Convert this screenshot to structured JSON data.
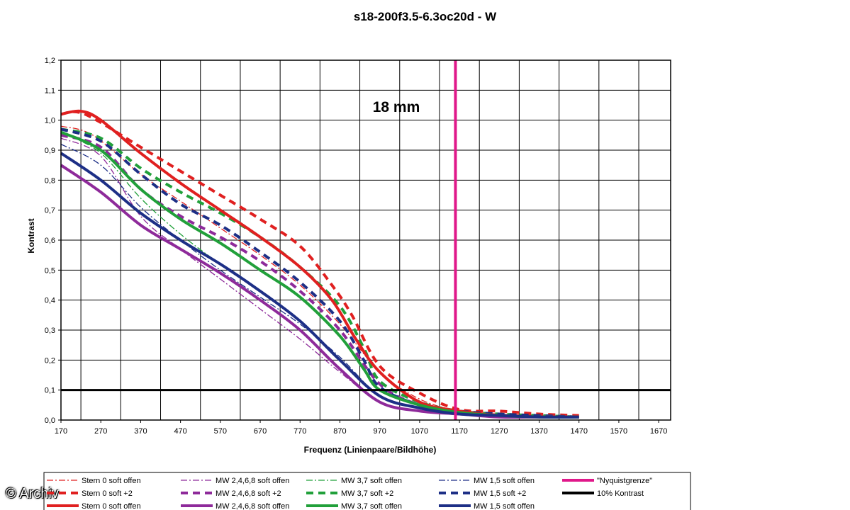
{
  "watermark": "© Archiv",
  "chart_data": {
    "type": "line",
    "title": "s18-200f3.5-6.3oc20d - W",
    "annotation": "18 mm",
    "xlabel": "Frequenz (Linienpaare/Bildhöhe)",
    "ylabel": "Kontrast",
    "xlim": [
      170,
      1700
    ],
    "ylim": [
      0,
      1.2
    ],
    "x_ticks": [
      170,
      270,
      370,
      470,
      570,
      670,
      770,
      870,
      970,
      1070,
      1170,
      1270,
      1370,
      1470,
      1570,
      1670
    ],
    "y_ticks": [
      "0,0",
      "0,1",
      "0,2",
      "0,3",
      "0,4",
      "0,5",
      "0,6",
      "0,7",
      "0,8",
      "0,9",
      "1,0",
      "1,1",
      "1,2"
    ],
    "grid": true,
    "legend_position": "bottom",
    "colors": {
      "red": "#e02020",
      "purple": "#8e2a9a",
      "green": "#21a03a",
      "navy": "#1d2f86",
      "magenta": "#e0188a",
      "black": "#000000"
    },
    "series": [
      {
        "name": "Stern 0 soft offen",
        "style": "dashdot",
        "color": "#e02020",
        "x": [
          170,
          250,
          370,
          470,
          570,
          670,
          770,
          870,
          970,
          1070,
          1170,
          1270,
          1370,
          1470
        ],
        "y": [
          0.98,
          0.95,
          0.82,
          0.73,
          0.64,
          0.55,
          0.45,
          0.32,
          0.16,
          0.07,
          0.03,
          0.02,
          0.015,
          0.01
        ]
      },
      {
        "name": "Stern 0 soft +2",
        "style": "dashed",
        "color": "#e02020",
        "x": [
          170,
          230,
          370,
          470,
          570,
          670,
          770,
          850,
          900,
          970,
          1070,
          1170,
          1270,
          1370,
          1470
        ],
        "y": [
          1.02,
          1.02,
          0.91,
          0.83,
          0.75,
          0.67,
          0.58,
          0.45,
          0.35,
          0.18,
          0.09,
          0.035,
          0.03,
          0.02,
          0.015
        ]
      },
      {
        "name": "Stern 0 soft offen",
        "style": "solid",
        "color": "#e02020",
        "x": [
          170,
          220,
          270,
          370,
          470,
          570,
          670,
          770,
          850,
          910,
          970,
          1070,
          1170,
          1270,
          1370,
          1470
        ],
        "y": [
          1.02,
          1.03,
          1.0,
          0.89,
          0.79,
          0.7,
          0.61,
          0.51,
          0.4,
          0.27,
          0.16,
          0.06,
          0.03,
          0.015,
          0.01,
          0.01
        ]
      },
      {
        "name": "MW 2,4,6,8 soft offen",
        "style": "dashdot",
        "color": "#8e2a9a",
        "x": [
          170,
          270,
          370,
          470,
          570,
          670,
          770,
          870,
          970,
          1070,
          1170,
          1270,
          1370,
          1470
        ],
        "y": [
          0.94,
          0.88,
          0.68,
          0.57,
          0.47,
          0.37,
          0.27,
          0.16,
          0.06,
          0.03,
          0.02,
          0.01,
          0.01,
          0.01
        ]
      },
      {
        "name": "MW 2,4,6,8 soft +2",
        "style": "dashed",
        "color": "#8e2a9a",
        "x": [
          170,
          270,
          370,
          470,
          570,
          670,
          770,
          870,
          970,
          1070,
          1170,
          1270,
          1370,
          1470
        ],
        "y": [
          0.95,
          0.91,
          0.77,
          0.68,
          0.61,
          0.53,
          0.43,
          0.3,
          0.12,
          0.05,
          0.025,
          0.015,
          0.01,
          0.01
        ]
      },
      {
        "name": "MW 2,4,6,8 soft offen",
        "style": "solid",
        "color": "#8e2a9a",
        "x": [
          170,
          270,
          370,
          470,
          570,
          670,
          770,
          870,
          970,
          1070,
          1170,
          1270,
          1370,
          1470
        ],
        "y": [
          0.85,
          0.76,
          0.65,
          0.57,
          0.49,
          0.4,
          0.3,
          0.17,
          0.06,
          0.03,
          0.02,
          0.01,
          0.01,
          0.01
        ]
      },
      {
        "name": "MW 3,7 soft offen",
        "style": "dashdot",
        "color": "#21a03a",
        "x": [
          170,
          270,
          370,
          470,
          570,
          670,
          770,
          870,
          970,
          1070,
          1170,
          1270,
          1370,
          1470
        ],
        "y": [
          0.96,
          0.89,
          0.74,
          0.62,
          0.52,
          0.43,
          0.33,
          0.2,
          0.08,
          0.04,
          0.02,
          0.015,
          0.01,
          0.01
        ]
      },
      {
        "name": "MW 3,7 soft +2",
        "style": "dashed",
        "color": "#21a03a",
        "x": [
          170,
          270,
          370,
          470,
          570,
          670,
          770,
          870,
          930,
          970,
          1070,
          1170,
          1270,
          1370,
          1470
        ],
        "y": [
          0.97,
          0.94,
          0.84,
          0.76,
          0.69,
          0.61,
          0.51,
          0.38,
          0.24,
          0.13,
          0.06,
          0.03,
          0.02,
          0.015,
          0.01
        ]
      },
      {
        "name": "MW 3,7 soft offen",
        "style": "solid",
        "color": "#21a03a",
        "x": [
          170,
          270,
          370,
          470,
          570,
          670,
          770,
          870,
          930,
          970,
          1070,
          1170,
          1270,
          1370,
          1470
        ],
        "y": [
          0.96,
          0.9,
          0.77,
          0.67,
          0.59,
          0.5,
          0.41,
          0.28,
          0.17,
          0.1,
          0.05,
          0.025,
          0.015,
          0.01,
          0.01
        ]
      },
      {
        "name": "MW 1,5 soft offen",
        "style": "dashdot",
        "color": "#1d2f86",
        "x": [
          170,
          270,
          370,
          470,
          570,
          670,
          770,
          870,
          970,
          1070,
          1170,
          1270,
          1370,
          1470
        ],
        "y": [
          0.92,
          0.85,
          0.71,
          0.6,
          0.5,
          0.41,
          0.32,
          0.21,
          0.08,
          0.04,
          0.02,
          0.015,
          0.01,
          0.01
        ]
      },
      {
        "name": "MW 1,5 soft +2",
        "style": "dashed",
        "color": "#1d2f86",
        "x": [
          170,
          270,
          370,
          470,
          570,
          670,
          770,
          870,
          930,
          970,
          1070,
          1170,
          1270,
          1370,
          1470
        ],
        "y": [
          0.97,
          0.93,
          0.82,
          0.72,
          0.65,
          0.56,
          0.46,
          0.33,
          0.2,
          0.11,
          0.05,
          0.03,
          0.02,
          0.015,
          0.01
        ]
      },
      {
        "name": "MW 1,5 soft offen",
        "style": "solid",
        "color": "#1d2f86",
        "x": [
          170,
          270,
          370,
          470,
          570,
          670,
          770,
          870,
          970,
          1070,
          1170,
          1270,
          1370,
          1470
        ],
        "y": [
          0.89,
          0.8,
          0.69,
          0.6,
          0.52,
          0.43,
          0.33,
          0.2,
          0.08,
          0.04,
          0.02,
          0.015,
          0.01,
          0.01
        ]
      },
      {
        "name": "\"Nyquistgrenze\"",
        "style": "vertical",
        "color": "#e0188a",
        "x": [
          1160,
          1160
        ],
        "y": [
          0,
          1.2
        ]
      },
      {
        "name": "10% Kontrast",
        "style": "horizontal",
        "color": "#000000",
        "x": [
          170,
          1700
        ],
        "y": [
          0.1,
          0.1
        ]
      }
    ]
  }
}
